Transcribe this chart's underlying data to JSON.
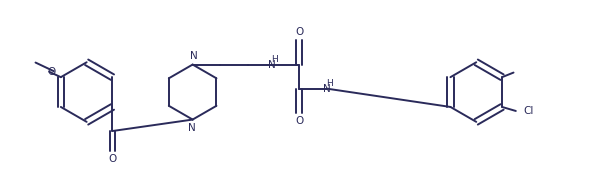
{
  "line_color": "#2a2a5a",
  "bg_color": "#ffffff",
  "line_width": 1.4,
  "font_size": 7.5,
  "figsize": [
    6.03,
    1.95
  ],
  "dpi": 100,
  "xlim": [
    0,
    10.5
  ],
  "ylim": [
    0,
    3.25
  ]
}
